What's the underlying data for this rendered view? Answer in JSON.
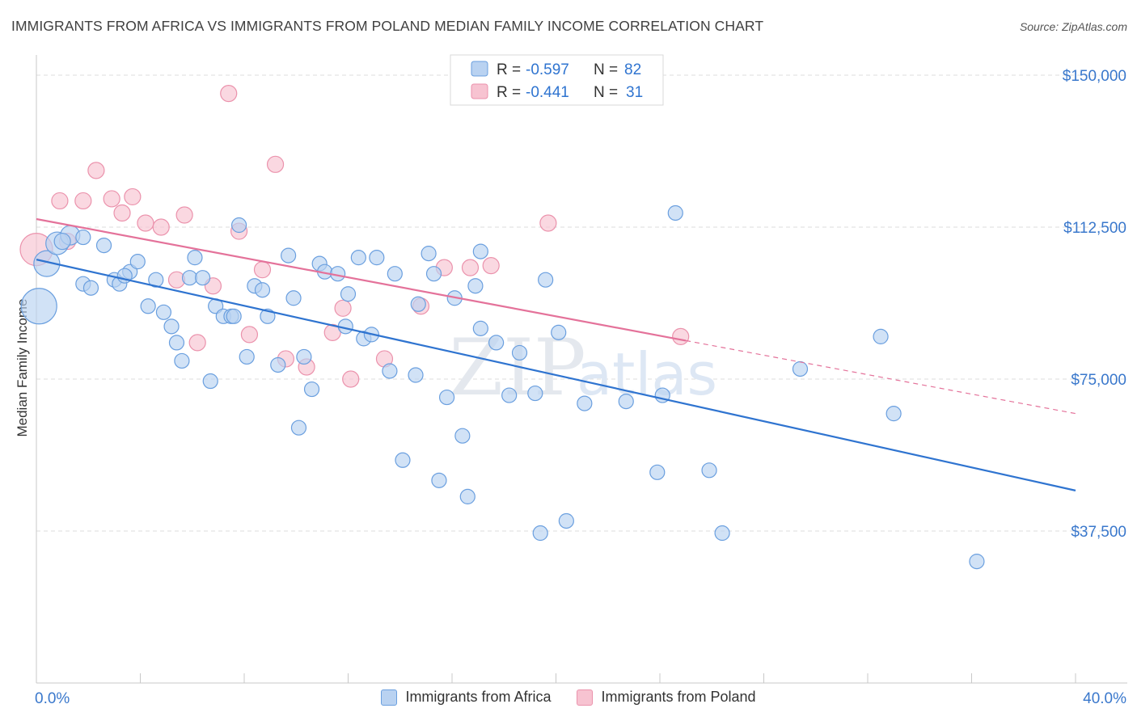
{
  "title": "IMMIGRANTS FROM AFRICA VS IMMIGRANTS FROM POLAND MEDIAN FAMILY INCOME CORRELATION CHART",
  "source": "Source: ZipAtlas.com",
  "watermark": {
    "zip": "ZIP",
    "atlas": "atlas"
  },
  "colors": {
    "blue_fill": "#b9d2f1",
    "blue_stroke": "#6a9fdf",
    "blue_line": "#2f74d0",
    "pink_fill": "#f7c3d1",
    "pink_stroke": "#eb92ac",
    "pink_line": "#e4729a",
    "axis_text": "#3a78cc"
  },
  "legend": {
    "rows": [
      {
        "r_label": "R = ",
        "r_value": "-0.597",
        "n_label": "N = ",
        "n_value": "82"
      },
      {
        "r_label": "R = ",
        "r_value": "-0.441",
        "n_label": "N = ",
        "n_value": "31"
      }
    ]
  },
  "chart_data": {
    "type": "scatter",
    "title": "IMMIGRANTS FROM AFRICA VS IMMIGRANTS FROM POLAND MEDIAN FAMILY INCOME CORRELATION CHART",
    "xlabel": "",
    "ylabel": "Median Family Income",
    "xlim": [
      0,
      40
    ],
    "ylim": [
      0,
      153000
    ],
    "x_tick_labels": [
      "0.0%",
      "40.0%"
    ],
    "y_ticks": [
      37500,
      75000,
      112500,
      150000
    ],
    "y_tick_labels": [
      "$37,500",
      "$75,000",
      "$112,500",
      "$150,000"
    ],
    "grid": true,
    "legend_position": "top-center",
    "series": [
      {
        "name": "Immigrants from Africa",
        "r": -0.597,
        "n": 82,
        "trend": {
          "x": [
            0,
            40
          ],
          "y": [
            104500,
            47500
          ]
        },
        "points": [
          [
            0.1,
            93000,
            22
          ],
          [
            0.4,
            103500,
            16
          ],
          [
            0.8,
            108500,
            14
          ],
          [
            1.3,
            110500,
            12
          ],
          [
            1.0,
            109000,
            10
          ],
          [
            1.8,
            110000,
            9
          ],
          [
            1.8,
            98500,
            9
          ],
          [
            2.1,
            97500,
            9
          ],
          [
            2.6,
            108000,
            9
          ],
          [
            3.0,
            99500,
            9
          ],
          [
            3.2,
            98500,
            9
          ],
          [
            3.6,
            101500,
            9
          ],
          [
            3.9,
            104000,
            9
          ],
          [
            3.4,
            100500,
            9
          ],
          [
            4.3,
            93000,
            9
          ],
          [
            4.6,
            99500,
            9
          ],
          [
            4.9,
            91500,
            9
          ],
          [
            5.2,
            88000,
            9
          ],
          [
            5.4,
            84000,
            9
          ],
          [
            5.6,
            79500,
            9
          ],
          [
            5.9,
            100000,
            9
          ],
          [
            6.1,
            105000,
            9
          ],
          [
            6.4,
            100000,
            9
          ],
          [
            6.7,
            74500,
            9
          ],
          [
            6.9,
            93000,
            9
          ],
          [
            7.2,
            90500,
            9
          ],
          [
            7.5,
            90500,
            9
          ],
          [
            7.8,
            113000,
            9
          ],
          [
            8.1,
            80500,
            9
          ],
          [
            8.4,
            98000,
            9
          ],
          [
            8.7,
            97000,
            9
          ],
          [
            8.9,
            90500,
            9
          ],
          [
            9.3,
            78500,
            9
          ],
          [
            9.7,
            105500,
            9
          ],
          [
            9.9,
            95000,
            9
          ],
          [
            10.1,
            63000,
            9
          ],
          [
            10.3,
            80500,
            9
          ],
          [
            10.6,
            72500,
            9
          ],
          [
            10.9,
            103500,
            9
          ],
          [
            11.1,
            101500,
            9
          ],
          [
            11.6,
            101000,
            9
          ],
          [
            11.9,
            88000,
            9
          ],
          [
            12.0,
            96000,
            9
          ],
          [
            12.4,
            105000,
            9
          ],
          [
            12.6,
            85000,
            9
          ],
          [
            12.9,
            86000,
            9
          ],
          [
            13.1,
            105000,
            9
          ],
          [
            13.6,
            77000,
            9
          ],
          [
            13.8,
            101000,
            9
          ],
          [
            14.1,
            55000,
            9
          ],
          [
            14.6,
            76000,
            9
          ],
          [
            14.7,
            93500,
            9
          ],
          [
            15.1,
            106000,
            9
          ],
          [
            15.3,
            101000,
            9
          ],
          [
            15.5,
            50000,
            9
          ],
          [
            15.8,
            70500,
            9
          ],
          [
            16.1,
            95000,
            9
          ],
          [
            16.4,
            61000,
            9
          ],
          [
            16.6,
            46000,
            9
          ],
          [
            16.9,
            98000,
            9
          ],
          [
            17.1,
            106500,
            9
          ],
          [
            17.1,
            87500,
            9
          ],
          [
            17.7,
            84000,
            9
          ],
          [
            18.6,
            81500,
            9
          ],
          [
            19.2,
            71500,
            9
          ],
          [
            19.4,
            37000,
            9
          ],
          [
            19.6,
            99500,
            9
          ],
          [
            20.1,
            86500,
            9
          ],
          [
            20.4,
            40000,
            9
          ],
          [
            21.1,
            69000,
            9
          ],
          [
            22.7,
            69500,
            9
          ],
          [
            23.9,
            52000,
            9
          ],
          [
            24.1,
            71000,
            9
          ],
          [
            24.6,
            116000,
            9
          ],
          [
            25.9,
            52500,
            9
          ],
          [
            26.4,
            37000,
            9
          ],
          [
            29.4,
            77500,
            9
          ],
          [
            32.5,
            85500,
            9
          ],
          [
            33.0,
            66500,
            9
          ],
          [
            36.2,
            30000,
            9
          ],
          [
            18.2,
            71000,
            9
          ],
          [
            7.6,
            90500,
            9
          ]
        ]
      },
      {
        "name": "Immigrants from Poland",
        "r": -0.441,
        "n": 31,
        "trend": {
          "x": [
            0,
            25
          ],
          "y": [
            114500,
            84500
          ]
        },
        "trend_dashed": {
          "x": [
            25,
            40
          ],
          "y": [
            84500,
            66500
          ]
        },
        "points": [
          [
            0.0,
            107000,
            20
          ],
          [
            0.9,
            119000,
            10
          ],
          [
            1.2,
            109000,
            10
          ],
          [
            1.8,
            119000,
            10
          ],
          [
            2.3,
            126500,
            10
          ],
          [
            2.9,
            119500,
            10
          ],
          [
            3.3,
            116000,
            10
          ],
          [
            3.7,
            120000,
            10
          ],
          [
            4.2,
            113500,
            10
          ],
          [
            4.8,
            112500,
            10
          ],
          [
            5.4,
            99500,
            10
          ],
          [
            5.7,
            115500,
            10
          ],
          [
            6.2,
            84000,
            10
          ],
          [
            6.8,
            98000,
            10
          ],
          [
            7.4,
            145500,
            10
          ],
          [
            7.8,
            111500,
            10
          ],
          [
            8.2,
            86000,
            10
          ],
          [
            8.7,
            102000,
            10
          ],
          [
            9.2,
            128000,
            10
          ],
          [
            9.6,
            80000,
            10
          ],
          [
            10.4,
            78000,
            10
          ],
          [
            11.4,
            86500,
            10
          ],
          [
            11.8,
            92500,
            10
          ],
          [
            12.1,
            75000,
            10
          ],
          [
            13.4,
            80000,
            10
          ],
          [
            14.8,
            93000,
            10
          ],
          [
            15.7,
            102500,
            10
          ],
          [
            16.7,
            102500,
            10
          ],
          [
            17.5,
            103000,
            10
          ],
          [
            19.7,
            113500,
            10
          ],
          [
            24.8,
            85500,
            10
          ]
        ]
      }
    ]
  }
}
